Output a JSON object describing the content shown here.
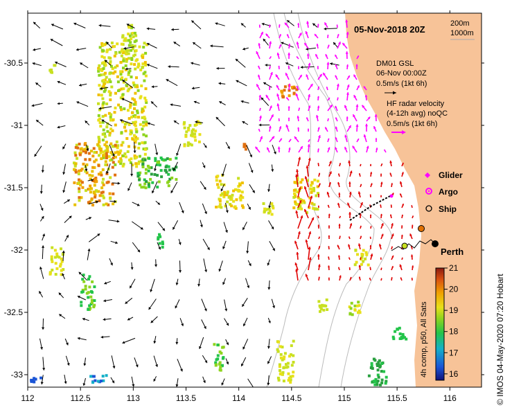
{
  "title": "05-Nov-2018 20Z",
  "depth_labels": [
    "200m",
    "1000m"
  ],
  "dm01": {
    "line1": "DM01 GSL",
    "line2": "06-Nov 00:00Z",
    "line3": "0.5m/s (1kt 6h)"
  },
  "hf_radar": {
    "line1": "HF radar velocity",
    "line2": "(4-12h avg) noQC",
    "line3": "0.5m/s (1kt 6h)"
  },
  "legend": {
    "glider": "Glider",
    "argo": "Argo",
    "ship": "Ship"
  },
  "city": "Perth",
  "colorbar": {
    "ticks": [
      16,
      17,
      18,
      19,
      20,
      21
    ],
    "label": "4h comp, p50, All Sats",
    "range": [
      15.7,
      21
    ]
  },
  "credit": "© IMOS 04-May-2020 07:20 Hobart",
  "axes": {
    "x_ticks": [
      "112",
      "112.5",
      "113",
      "113.5",
      "114",
      "114.5",
      "115",
      "115.5",
      "116"
    ],
    "y_ticks": [
      "-30.5",
      "-31",
      "-31.5",
      "-32",
      "-32.5",
      "-33"
    ],
    "lon_range": [
      112,
      116.3
    ],
    "lat_range": [
      -33.1,
      -30.1
    ]
  },
  "colors": {
    "land": "#f7c398",
    "hf_arrow": "#ff00ff",
    "ship": "#e07000",
    "cold": "#1a5fd0",
    "warm": "#f0a000"
  }
}
